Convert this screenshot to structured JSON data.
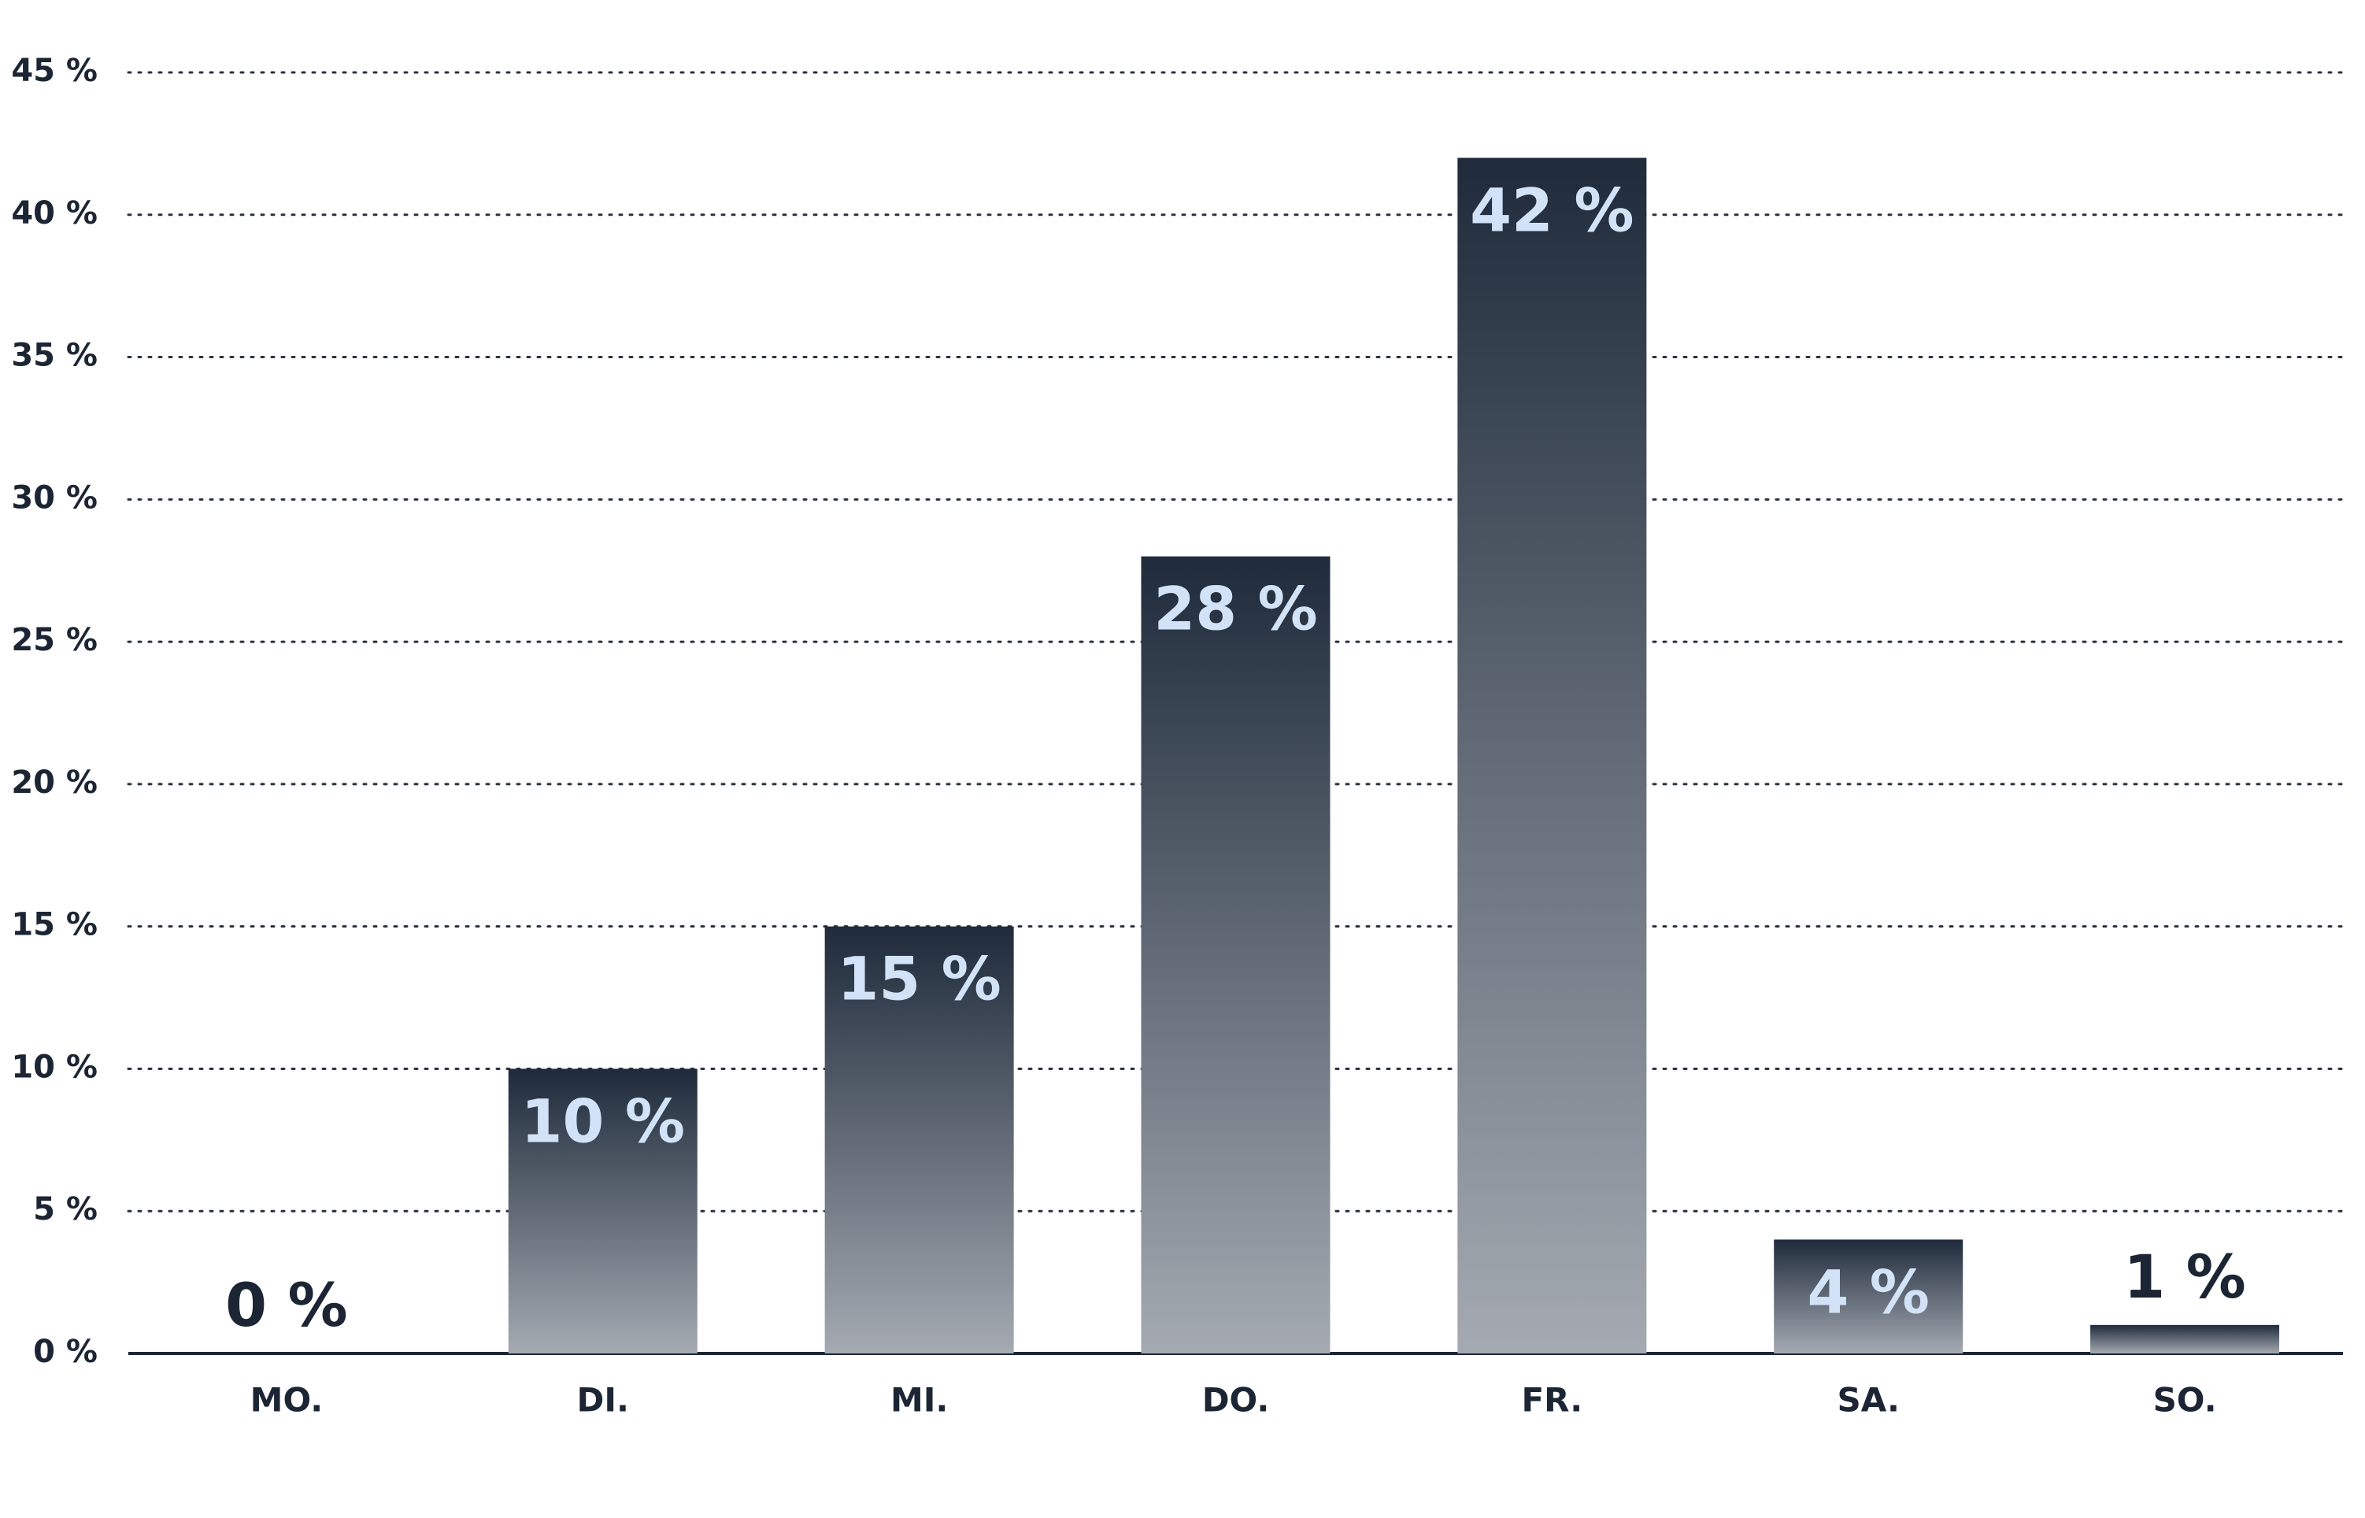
{
  "chart_data": {
    "type": "bar",
    "categories": [
      "MO.",
      "DI.",
      "MI.",
      "DO.",
      "FR.",
      "SA.",
      "SO."
    ],
    "values": [
      0,
      10,
      15,
      28,
      42,
      4,
      1
    ],
    "value_labels": [
      "0 %",
      "10 %",
      "15 %",
      "28 %",
      "42 %",
      "4 %",
      "1 %"
    ],
    "gradient": [
      "#1f2b3b",
      "#a5aab2"
    ],
    "ylim": [
      0,
      45
    ],
    "yticks": [
      {
        "value": 0,
        "label": "0 %"
      },
      {
        "value": 5,
        "label": "5 %"
      },
      {
        "value": 10,
        "label": "10 %"
      },
      {
        "value": 15,
        "label": "15 %"
      },
      {
        "value": 20,
        "label": "20 %"
      },
      {
        "value": 25,
        "label": "25 %"
      },
      {
        "value": 30,
        "label": "30 %"
      },
      {
        "value": 35,
        "label": "35 %"
      },
      {
        "value": 40,
        "label": "40 %"
      },
      {
        "value": 45,
        "label": "45 %"
      }
    ],
    "grid": true
  }
}
